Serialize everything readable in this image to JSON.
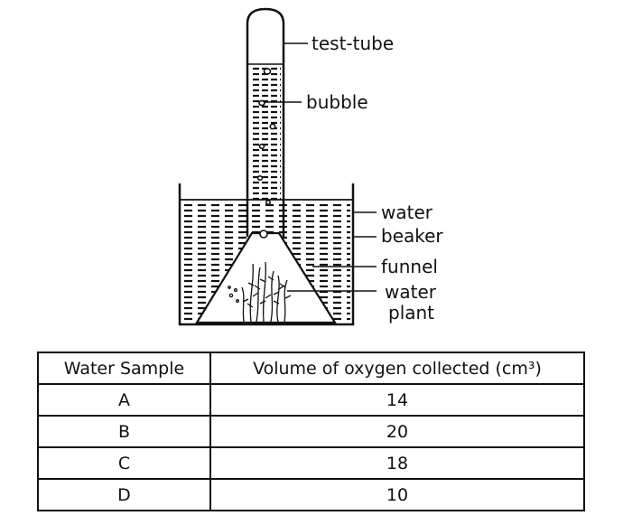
{
  "diagram": {
    "labels": {
      "test_tube": "test-tube",
      "bubble": "bubble",
      "water": "water",
      "beaker": "beaker",
      "funnel": "funnel",
      "water_plant_line1": "water",
      "water_plant_line2": "plant"
    }
  },
  "table": {
    "headers": [
      "Water Sample",
      "Volume of oxygen collected (cm³)"
    ],
    "rows": [
      [
        "A",
        "14"
      ],
      [
        "B",
        "20"
      ],
      [
        "C",
        "18"
      ],
      [
        "D",
        "10"
      ]
    ]
  }
}
